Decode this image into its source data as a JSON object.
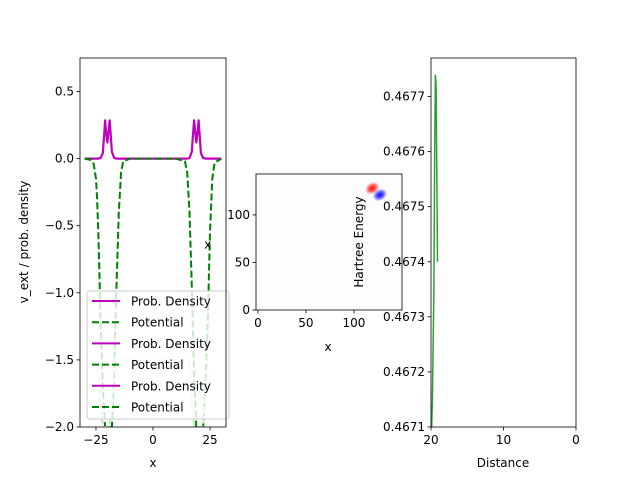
{
  "chart_data": [
    {
      "type": "line",
      "xlabel": "x",
      "ylabel": "v_ext / prob. density",
      "xlim": [
        -32,
        32
      ],
      "ylim": [
        -2.0,
        0.75
      ],
      "xticks": [
        -25,
        0,
        25
      ],
      "yticks": [
        -2.0,
        -1.5,
        -1.0,
        -0.5,
        0.0,
        0.5
      ],
      "annotations": [
        {
          "text": "x",
          "x": 24,
          "y": -0.64
        }
      ],
      "legend": {
        "placement": "lower-left",
        "entries": [
          {
            "label": "Prob. Density",
            "color": "#bf00bf",
            "style": "solid"
          },
          {
            "label": "Potential",
            "color": "#008000",
            "style": "dashed"
          },
          {
            "label": "Prob. Density",
            "color": "#bf00bf",
            "style": "solid"
          },
          {
            "label": "Potential",
            "color": "#008000",
            "style": "dashed"
          },
          {
            "label": "Prob. Density",
            "color": "#bf00bf",
            "style": "solid"
          },
          {
            "label": "Potential",
            "color": "#008000",
            "style": "dashed"
          }
        ]
      },
      "series": [
        {
          "color": "#bf00bf",
          "style": "solid",
          "x": [
            -30,
            -24,
            -23,
            -22,
            -21.5,
            -21,
            -20.5,
            -20,
            -19.5,
            -19,
            -18.5,
            -18,
            -17,
            -16,
            15,
            16,
            17,
            17.5,
            18,
            18.5,
            19,
            19.5,
            20,
            20.5,
            21,
            22,
            23,
            30
          ],
          "y": [
            0.0,
            0.0,
            0.005,
            0.04,
            0.16,
            0.285,
            0.19,
            0.12,
            0.2,
            0.285,
            0.17,
            0.05,
            0.005,
            0.0,
            0.0,
            0.005,
            0.05,
            0.17,
            0.285,
            0.2,
            0.12,
            0.19,
            0.285,
            0.16,
            0.04,
            0.005,
            0.0,
            0.0
          ]
        },
        {
          "color": "#008000",
          "style": "dashed",
          "x": [
            -30,
            -27,
            -26,
            -25,
            -24.5,
            -24,
            -23.5,
            -23,
            -22,
            -21,
            -20,
            -19,
            -18,
            -17,
            -16,
            -15,
            -14,
            -13,
            -10,
            10,
            14,
            15,
            16,
            17,
            18,
            19,
            20,
            21,
            22,
            23,
            24,
            25,
            26,
            27,
            30
          ],
          "y": [
            0.0,
            -0.01,
            -0.04,
            -0.15,
            -0.3,
            -0.55,
            -0.85,
            -1.2,
            -1.7,
            -2.0,
            -2.0,
            -2.0,
            -2.0,
            -1.6,
            -0.95,
            -0.4,
            -0.1,
            -0.02,
            0.0,
            0.0,
            -0.02,
            -0.1,
            -0.4,
            -0.95,
            -1.6,
            -2.0,
            -2.0,
            -2.0,
            -2.0,
            -1.7,
            -1.2,
            -0.55,
            -0.15,
            -0.03,
            0.0
          ]
        },
        {
          "color": "#c8e6c8",
          "style": "dashed",
          "x": [
            -24,
            -23,
            -22,
            -21,
            -20,
            -19,
            -18,
            -17,
            16,
            17,
            18,
            19,
            20,
            21,
            22,
            23,
            24
          ],
          "y": [
            -1.55,
            -1.8,
            -2.0,
            -2.0,
            -2.0,
            -2.0,
            -1.8,
            -1.5,
            -1.5,
            -1.8,
            -2.0,
            -2.0,
            -2.0,
            -2.0,
            -2.0,
            -1.8,
            -1.55
          ]
        }
      ]
    },
    {
      "type": "heatmap",
      "xlabel": "x",
      "ylabel": "",
      "xlim": [
        -2,
        150
      ],
      "ylim": [
        0,
        143
      ],
      "xticks": [
        0,
        50,
        100
      ],
      "yticks": [
        0,
        50,
        100
      ],
      "blobs": [
        {
          "x": 119,
          "y": 128,
          "color": "#ff0000",
          "intensity": 1.0
        },
        {
          "x": 127,
          "y": 121,
          "color": "#0000ff",
          "intensity": 1.0
        }
      ]
    },
    {
      "type": "line",
      "xlabel": "Distance",
      "ylabel": "Hartree Energy",
      "x_inverted": true,
      "xlim": [
        20,
        0
      ],
      "ylim": [
        0.4671,
        0.46777
      ],
      "xticks": [
        20,
        10,
        0
      ],
      "yticks": [
        0.4671,
        0.4672,
        0.4673,
        0.4674,
        0.4675,
        0.4676,
        0.4677
      ],
      "ytick_labels": [
        "0.4671",
        "0.4672",
        "0.4673",
        "0.4674",
        "0.4675",
        "0.4676",
        "0.4677"
      ],
      "series": [
        {
          "color": "#2ca02c",
          "x": [
            19.9,
            19.8,
            19.6,
            19.5,
            19.4,
            19.3,
            19.1
          ],
          "y": [
            0.4671,
            0.46715,
            0.46735,
            0.46758,
            0.46774,
            0.46772,
            0.4674
          ]
        }
      ]
    }
  ]
}
